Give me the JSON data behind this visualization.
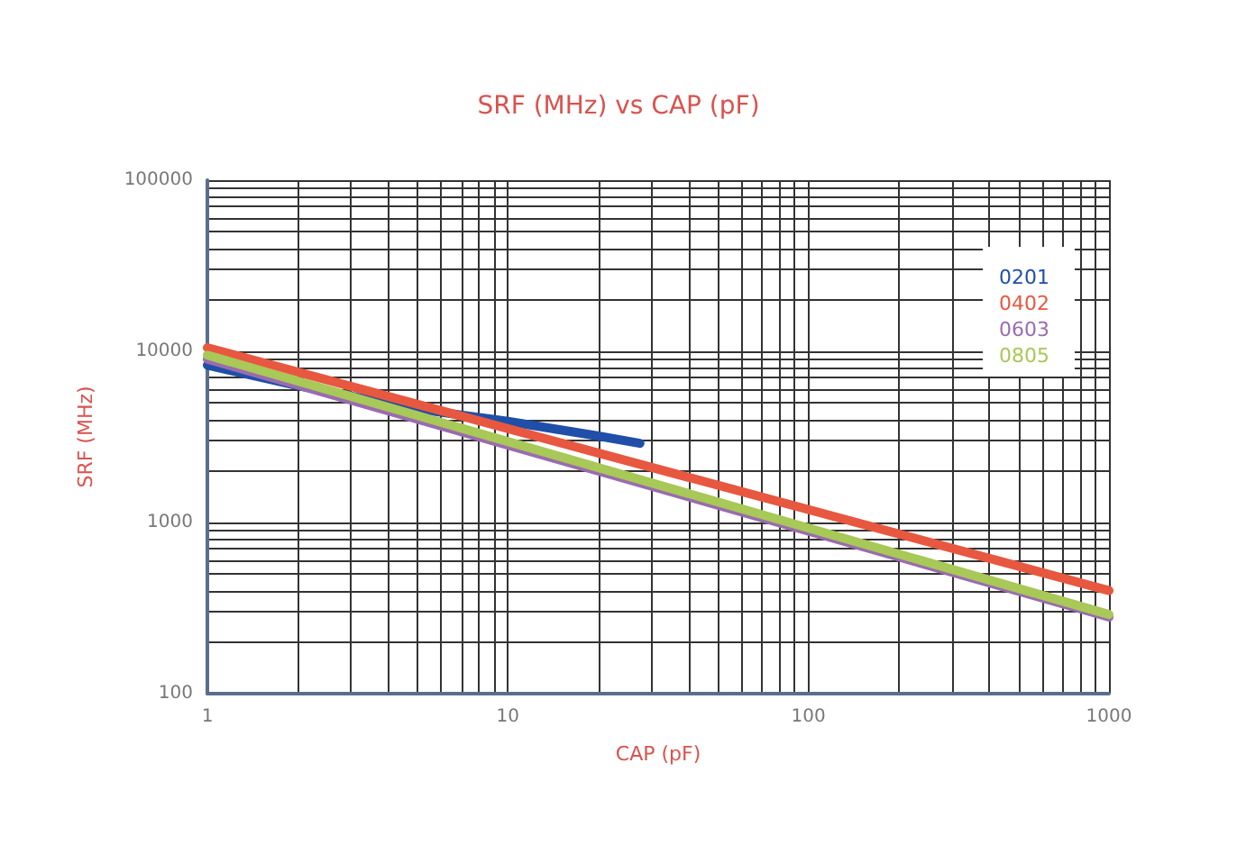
{
  "chart_data": {
    "type": "line",
    "title": "SRF (MHz) vs CAP (pF)",
    "xlabel": "CAP (pF)",
    "ylabel": "SRF (MHz)",
    "log": "xy",
    "xlim": [
      1,
      1000
    ],
    "ylim": [
      100,
      100000
    ],
    "xticks": [
      1,
      10,
      100,
      1000
    ],
    "yticks": [
      100,
      1000,
      10000,
      100000
    ],
    "grid": true,
    "legend": "top right",
    "marker": "none",
    "line_style": "solid",
    "series": [
      {
        "name": "0201",
        "color": "#1f4fa8",
        "x": [
          1,
          2,
          5,
          10,
          20,
          27.5
        ],
        "values": [
          8300,
          6300,
          4600,
          3900,
          3200,
          2900
        ]
      },
      {
        "name": "0402",
        "color": "#e8573f",
        "x": [
          1,
          1000
        ],
        "values": [
          10500,
          400
        ]
      },
      {
        "name": "0603",
        "color": "#9b6bb0",
        "x": [
          1,
          1000
        ],
        "values": [
          9000,
          280
        ]
      },
      {
        "name": "0805",
        "color": "#a8c857",
        "x": [
          1,
          1000
        ],
        "values": [
          9500,
          290
        ]
      }
    ]
  }
}
